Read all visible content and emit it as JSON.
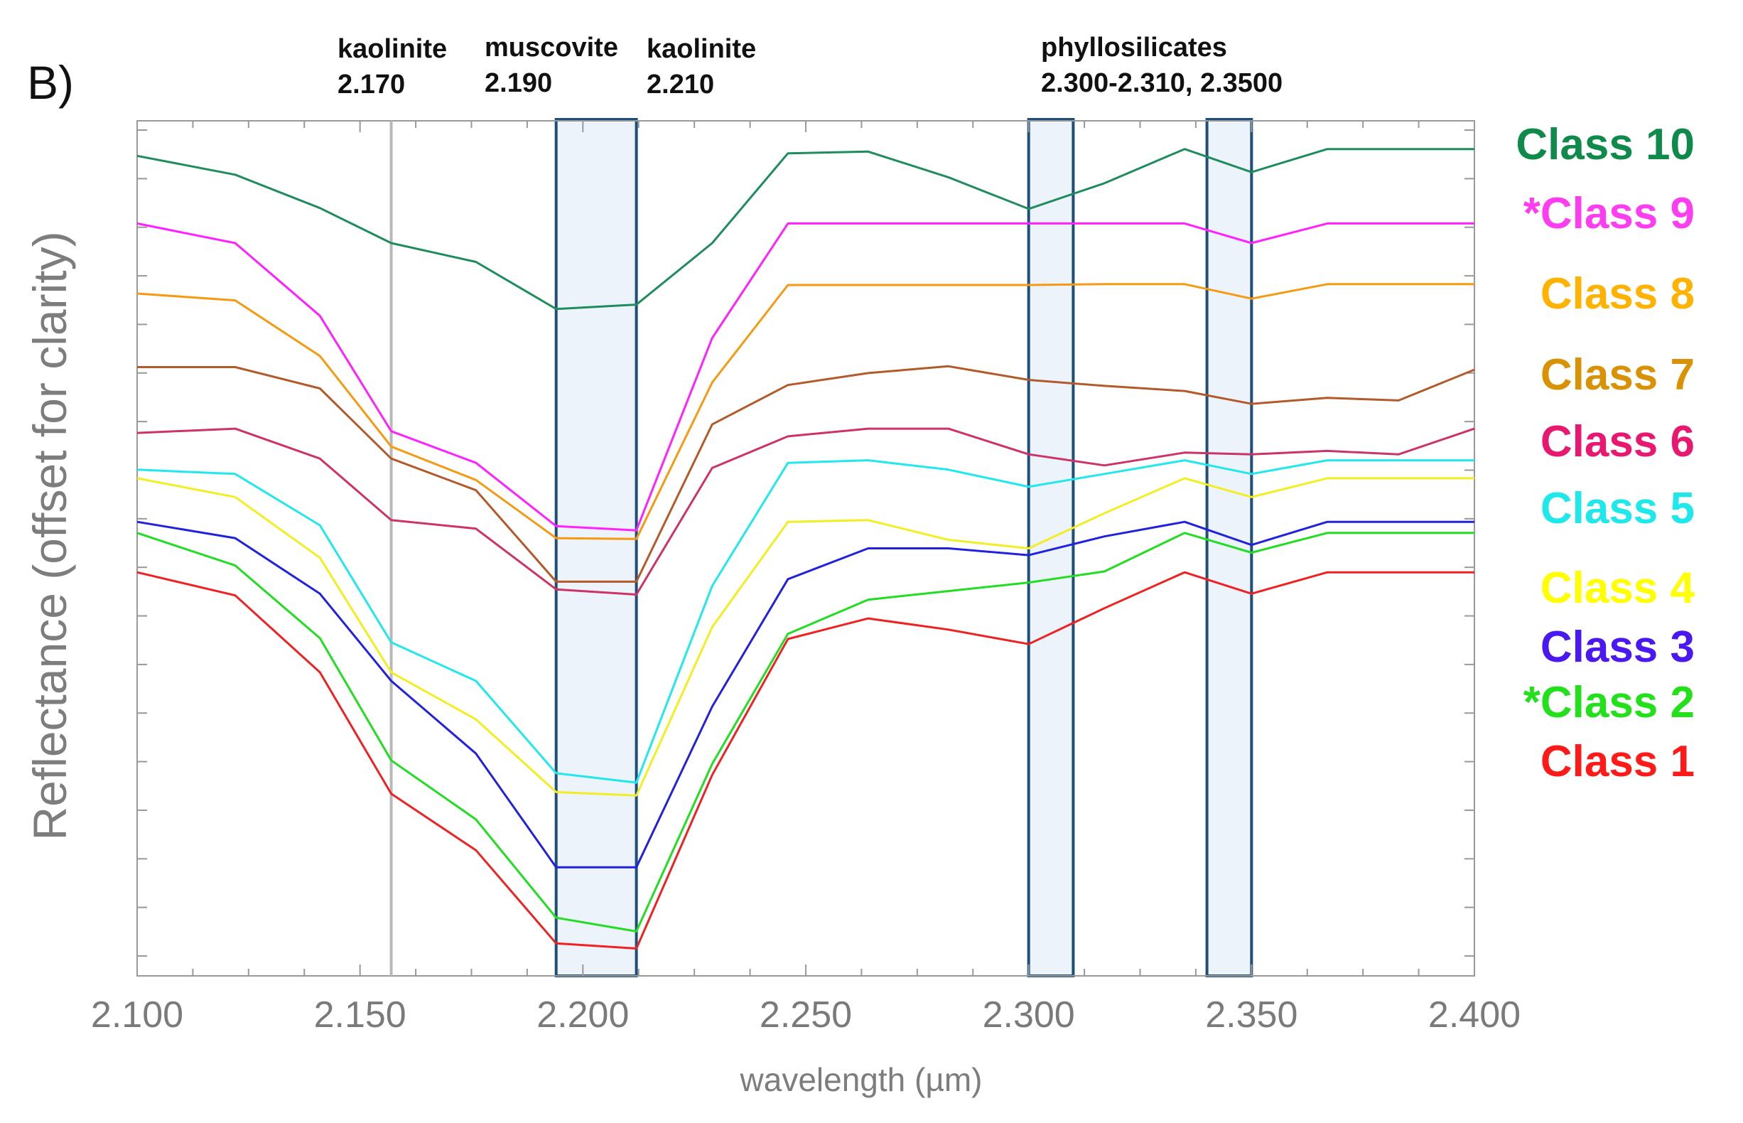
{
  "panel_label": "B)",
  "annotations": [
    {
      "mineral": "kaolinite",
      "wavelength": "2.170"
    },
    {
      "mineral": "muscovite",
      "wavelength": "2.190"
    },
    {
      "mineral": "kaolinite",
      "wavelength": "2.210"
    },
    {
      "mineral": "phyllosilicates",
      "wavelength": "2.300-2.310, 2.3500"
    }
  ],
  "chart_data": {
    "type": "line",
    "title": "",
    "xlabel": "wavelength (µm)",
    "ylabel": "Reflectance (offset for clarity)",
    "xlim": [
      2.1,
      2.4
    ],
    "ylim": [
      0,
      1
    ],
    "x_ticks": [
      "2.100",
      "2.150",
      "2.200",
      "2.250",
      "2.300",
      "2.350",
      "2.400"
    ],
    "grid": false,
    "reference_line": 2.157,
    "highlight_bands": [
      [
        2.194,
        2.212
      ],
      [
        2.3,
        2.31
      ],
      [
        2.34,
        2.35
      ]
    ],
    "x": [
      2.1,
      2.122,
      2.141,
      2.157,
      2.176,
      2.194,
      2.212,
      2.229,
      2.246,
      2.264,
      2.282,
      2.3,
      2.317,
      2.335,
      2.35,
      2.367,
      2.383,
      2.4
    ],
    "series": [
      {
        "name": "Class 10",
        "label": "Class 10",
        "color": "#0f8a4a",
        "line_color": "#1e8c5c",
        "values": [
          0.959,
          0.937,
          0.898,
          0.857,
          0.835,
          0.78,
          0.785,
          0.857,
          0.962,
          0.964,
          0.934,
          0.897,
          0.927,
          0.967,
          0.94,
          0.967,
          0.967,
          0.967
        ]
      },
      {
        "name": "Class 9",
        "label": "*Class 9",
        "color": "#ff3df0",
        "line_color": "#ff22ff",
        "values": [
          0.88,
          0.857,
          0.772,
          0.637,
          0.6,
          0.526,
          0.521,
          0.746,
          0.88,
          0.88,
          0.88,
          0.88,
          0.88,
          0.88,
          0.857,
          0.88,
          0.88,
          0.88
        ]
      },
      {
        "name": "Class 8",
        "label": "Class 8",
        "color": "#ffb300",
        "line_color": "#f59a12",
        "values": [
          0.798,
          0.79,
          0.725,
          0.619,
          0.58,
          0.512,
          0.511,
          0.694,
          0.808,
          0.808,
          0.808,
          0.808,
          0.809,
          0.809,
          0.792,
          0.809,
          0.809,
          0.809
        ]
      },
      {
        "name": "Class 7",
        "label": "Class 7",
        "color": "#d99206",
        "line_color": "#b35a2a",
        "values": [
          0.712,
          0.712,
          0.687,
          0.605,
          0.568,
          0.461,
          0.461,
          0.645,
          0.691,
          0.705,
          0.713,
          0.697,
          0.69,
          0.684,
          0.669,
          0.676,
          0.673,
          0.709
        ]
      },
      {
        "name": "Class 6",
        "label": "Class 6",
        "color": "#e8176f",
        "line_color": "#cc3366",
        "values": [
          0.635,
          0.64,
          0.605,
          0.533,
          0.523,
          0.452,
          0.446,
          0.594,
          0.631,
          0.64,
          0.64,
          0.61,
          0.597,
          0.612,
          0.61,
          0.614,
          0.61,
          0.64
        ]
      },
      {
        "name": "Class 5",
        "label": "Class 5",
        "color": "#1ee8ea",
        "line_color": "#22e8ee",
        "values": [
          0.592,
          0.587,
          0.527,
          0.39,
          0.345,
          0.237,
          0.226,
          0.456,
          0.6,
          0.603,
          0.592,
          0.572,
          0.587,
          0.603,
          0.587,
          0.603,
          0.603,
          0.603
        ]
      },
      {
        "name": "Class 4",
        "label": "Class 4",
        "color": "#ffff00",
        "line_color": "#f2ee22",
        "values": [
          0.582,
          0.56,
          0.489,
          0.355,
          0.3,
          0.215,
          0.211,
          0.408,
          0.531,
          0.533,
          0.51,
          0.5,
          0.541,
          0.582,
          0.56,
          0.582,
          0.582,
          0.582
        ]
      },
      {
        "name": "Class 3",
        "label": "Class 3",
        "color": "#4a18f0",
        "line_color": "#2222dd",
        "values": [
          0.531,
          0.512,
          0.447,
          0.345,
          0.26,
          0.127,
          0.127,
          0.315,
          0.464,
          0.5,
          0.5,
          0.492,
          0.514,
          0.531,
          0.504,
          0.531,
          0.531,
          0.531
        ]
      },
      {
        "name": "Class 2",
        "label": "*Class 2",
        "color": "#22e01a",
        "line_color": "#22dd22",
        "values": [
          0.518,
          0.48,
          0.395,
          0.252,
          0.183,
          0.068,
          0.052,
          0.248,
          0.4,
          0.44,
          0.45,
          0.46,
          0.473,
          0.518,
          0.495,
          0.518,
          0.518,
          0.518
        ]
      },
      {
        "name": "Class 1",
        "label": "Class 1",
        "color": "#ff1a1a",
        "line_color": "#ee2222",
        "values": [
          0.472,
          0.445,
          0.355,
          0.213,
          0.147,
          0.038,
          0.032,
          0.235,
          0.394,
          0.418,
          0.405,
          0.388,
          0.43,
          0.472,
          0.447,
          0.472,
          0.472,
          0.472
        ]
      }
    ]
  }
}
